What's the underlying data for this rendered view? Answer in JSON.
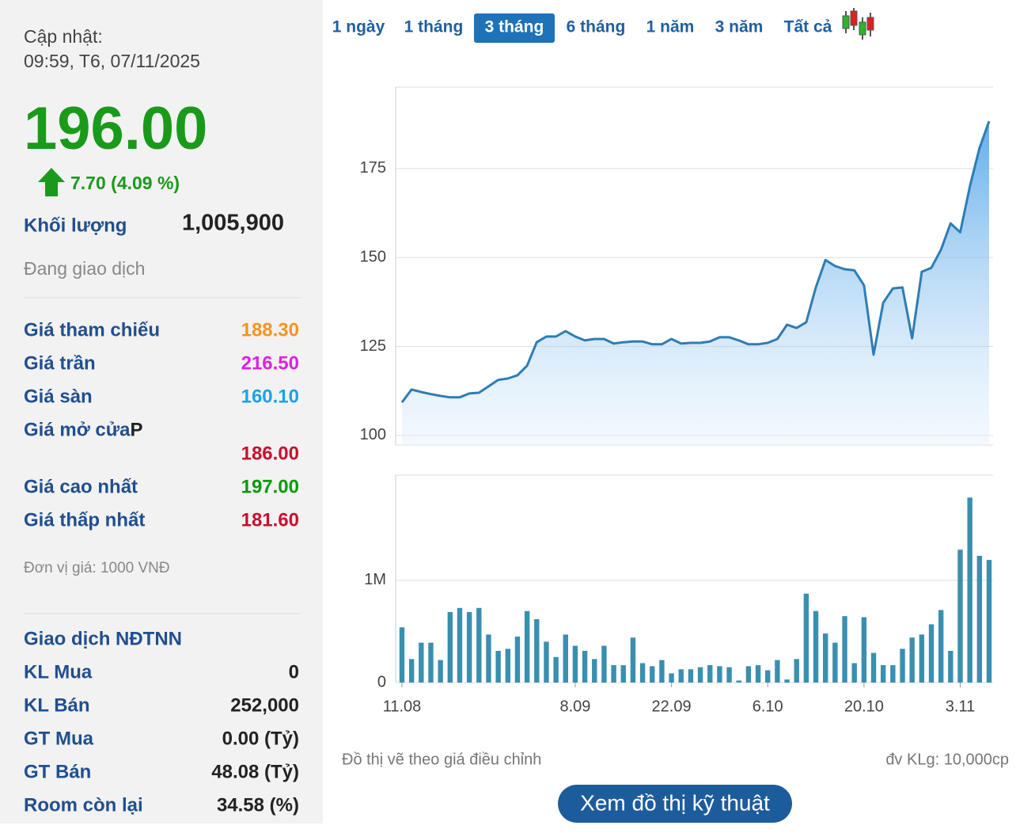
{
  "update": {
    "label": "Cập nhật:",
    "time": "09:59, T6, 07/11/2025"
  },
  "price": {
    "value": "196.00",
    "change": "7.70 (4.09 %)",
    "color": "#1a9a1a"
  },
  "volume": {
    "label": "Khối lượng",
    "value": "1,005,900"
  },
  "status": "Đang giao dịch",
  "price_rows": [
    {
      "label": "Giá tham chiếu",
      "value": "188.30",
      "color": "#f7941d"
    },
    {
      "label": "Giá trần",
      "value": "216.50",
      "color": "#e020e0"
    },
    {
      "label": "Giá sàn",
      "value": "160.10",
      "color": "#1aa3e8"
    },
    {
      "label": "Giá mở cửa",
      "suffix": "P",
      "value": "186.00",
      "color": "#c8102e"
    },
    {
      "label": "Giá cao nhất",
      "value": "197.00",
      "color": "#0a9a0a"
    },
    {
      "label": "Giá thấp nhất",
      "value": "181.60",
      "color": "#c8102e"
    }
  ],
  "unit_note": "Đơn vị giá: 1000 VNĐ",
  "foreign": {
    "title": "Giao dịch NĐTNN",
    "rows": [
      {
        "label": "KL Mua",
        "value": "0"
      },
      {
        "label": "KL Bán",
        "value": "252,000"
      },
      {
        "label": "GT Mua",
        "value": "0.00 (Tỷ)"
      },
      {
        "label": "GT Bán",
        "value": "48.08 (Tỷ)"
      },
      {
        "label": "Room còn lại",
        "value": "34.58 (%)"
      }
    ]
  },
  "tabs": {
    "items": [
      "1 ngày",
      "1 tháng",
      "3 tháng",
      "6 tháng",
      "1 năm",
      "3 năm",
      "Tất cả"
    ],
    "active": 2
  },
  "chart_data": [
    {
      "type": "area",
      "color": "#2e7db3",
      "grid": true,
      "ylim": [
        97.3,
        197.9
      ],
      "yticks": [
        100,
        125,
        150,
        175
      ],
      "values": [
        109.3,
        112.9,
        112.2,
        111.6,
        111.1,
        110.7,
        110.7,
        111.8,
        112,
        113.8,
        115.6,
        116,
        116.9,
        119.6,
        126.2,
        127.8,
        127.8,
        129.3,
        127.8,
        126.7,
        127.1,
        127.1,
        125.8,
        126.2,
        126.4,
        126.4,
        125.6,
        125.6,
        127.1,
        125.8,
        126,
        126,
        126.4,
        127.6,
        127.6,
        126.7,
        125.6,
        125.6,
        126,
        127.1,
        131.1,
        130.2,
        131.8,
        141.6,
        149.3,
        147.6,
        146.7,
        146.4,
        142.2,
        122.7,
        137.3,
        141.3,
        141.6,
        127.3,
        146,
        147.1,
        152.2,
        159.6,
        157.1,
        170,
        180.7,
        188.3
      ]
    },
    {
      "type": "bar",
      "color": "#3a8fb0",
      "grid": true,
      "ylim": [
        0,
        2030000
      ],
      "yticks": [
        0,
        {
          "value": 1000000,
          "label": "1M"
        }
      ],
      "categories": [
        "11.08",
        null,
        null,
        null,
        null,
        null,
        null,
        null,
        null,
        null,
        null,
        null,
        null,
        null,
        null,
        null,
        null,
        null,
        "8.09",
        null,
        null,
        null,
        null,
        null,
        null,
        null,
        null,
        null,
        "22.09",
        null,
        null,
        null,
        null,
        null,
        null,
        null,
        null,
        null,
        "6.10",
        null,
        null,
        null,
        null,
        null,
        null,
        null,
        null,
        null,
        "20.10",
        null,
        null,
        null,
        null,
        null,
        null,
        null,
        null,
        null,
        "3.11",
        null,
        null,
        null
      ],
      "values": [
        540000,
        230000,
        390000,
        390000,
        220000,
        690000,
        730000,
        690000,
        730000,
        470000,
        310000,
        330000,
        450000,
        700000,
        620000,
        400000,
        250000,
        470000,
        360000,
        310000,
        230000,
        360000,
        170000,
        170000,
        440000,
        190000,
        160000,
        220000,
        90000,
        130000,
        130000,
        150000,
        170000,
        160000,
        150000,
        20000,
        160000,
        170000,
        120000,
        220000,
        30000,
        230000,
        870000,
        700000,
        480000,
        390000,
        650000,
        190000,
        640000,
        290000,
        170000,
        170000,
        330000,
        440000,
        470000,
        570000,
        710000,
        310000,
        1300000,
        1810000,
        1240000,
        1200000
      ]
    }
  ],
  "footnote_left": "Đồ thị vẽ theo giá điều chỉnh",
  "footnote_right": "đv KLg: 10,000cp",
  "button": "Xem đồ thị kỹ thuật"
}
